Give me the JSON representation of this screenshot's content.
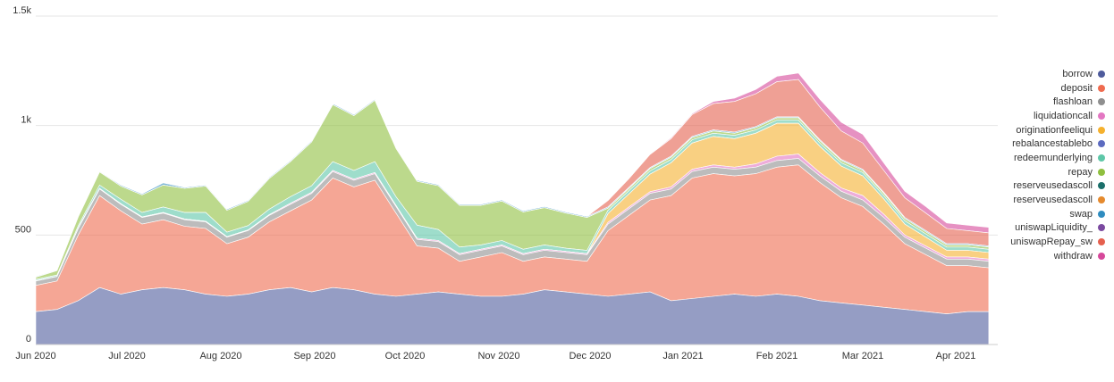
{
  "chart_data": {
    "type": "area",
    "stacked": true,
    "grid": true,
    "legend_position": "right",
    "x_ticks": [
      "Jun 2020",
      "Jul 2020",
      "Aug 2020",
      "Sep 2020",
      "Oct 2020",
      "Nov 2020",
      "Dec 2020",
      "Jan 2021",
      "Feb 2021",
      "Mar 2021",
      "Apr 2021"
    ],
    "y_ticks": [
      "0",
      "500",
      "1k",
      "1.5k"
    ],
    "y_tick_values": [
      0,
      500,
      1000,
      1500
    ],
    "ylim": [
      0,
      1500
    ],
    "x": [
      "2020-06-01",
      "2020-06-08",
      "2020-06-15",
      "2020-06-22",
      "2020-06-29",
      "2020-07-06",
      "2020-07-13",
      "2020-07-20",
      "2020-07-27",
      "2020-08-03",
      "2020-08-10",
      "2020-08-17",
      "2020-08-24",
      "2020-08-31",
      "2020-09-07",
      "2020-09-14",
      "2020-09-21",
      "2020-09-28",
      "2020-10-05",
      "2020-10-12",
      "2020-10-19",
      "2020-10-26",
      "2020-11-02",
      "2020-11-09",
      "2020-11-16",
      "2020-11-23",
      "2020-11-30",
      "2020-12-07",
      "2020-12-14",
      "2020-12-21",
      "2020-12-28",
      "2021-01-04",
      "2021-01-11",
      "2021-01-18",
      "2021-01-25",
      "2021-02-01",
      "2021-02-08",
      "2021-02-15",
      "2021-02-22",
      "2021-03-01",
      "2021-03-08",
      "2021-03-15",
      "2021-03-22",
      "2021-03-29",
      "2021-04-05",
      "2021-04-12"
    ],
    "series": [
      {
        "name": "borrow",
        "color": "#4e5b9c",
        "values": [
          150,
          160,
          200,
          260,
          230,
          250,
          260,
          250,
          230,
          220,
          230,
          250,
          260,
          240,
          260,
          250,
          230,
          220,
          230,
          240,
          230,
          220,
          220,
          230,
          250,
          240,
          230,
          220,
          230,
          240,
          200,
          210,
          220,
          230,
          220,
          230,
          220,
          200,
          190,
          180,
          170,
          160,
          150,
          140,
          150,
          150
        ]
      },
      {
        "name": "deposit",
        "color": "#ef6b4f",
        "values": [
          120,
          130,
          300,
          420,
          380,
          300,
          310,
          290,
          300,
          240,
          260,
          310,
          350,
          420,
          500,
          470,
          520,
          380,
          220,
          200,
          150,
          180,
          200,
          150,
          150,
          150,
          150,
          300,
          360,
          420,
          480,
          550,
          560,
          540,
          560,
          580,
          600,
          540,
          480,
          450,
          380,
          300,
          260,
          220,
          210,
          200
        ]
      },
      {
        "name": "flashloan",
        "color": "#8f8f8f",
        "values": [
          20,
          20,
          30,
          30,
          30,
          30,
          30,
          30,
          30,
          30,
          30,
          30,
          30,
          30,
          30,
          30,
          30,
          30,
          30,
          30,
          30,
          30,
          30,
          30,
          30,
          30,
          30,
          30,
          30,
          30,
          30,
          30,
          30,
          30,
          30,
          30,
          30,
          30,
          30,
          30,
          30,
          30,
          30,
          30,
          30,
          30
        ]
      },
      {
        "name": "liquidationcall",
        "color": "#e377c2",
        "values": [
          2,
          2,
          3,
          3,
          3,
          3,
          3,
          3,
          3,
          3,
          3,
          3,
          5,
          5,
          5,
          5,
          5,
          5,
          5,
          5,
          5,
          5,
          5,
          5,
          5,
          5,
          5,
          8,
          8,
          8,
          10,
          10,
          10,
          10,
          15,
          20,
          20,
          15,
          15,
          20,
          15,
          10,
          10,
          10,
          10,
          10
        ]
      },
      {
        "name": "originationfeeliqui",
        "color": "#f5b12e",
        "values": [
          0,
          0,
          0,
          0,
          0,
          0,
          0,
          0,
          0,
          0,
          0,
          0,
          0,
          0,
          0,
          0,
          0,
          0,
          0,
          0,
          0,
          0,
          0,
          0,
          0,
          0,
          0,
          40,
          60,
          80,
          110,
          120,
          130,
          130,
          140,
          150,
          140,
          120,
          100,
          90,
          70,
          50,
          40,
          30,
          30,
          30
        ]
      },
      {
        "name": "rebalancestablebo",
        "color": "#5c6bc0",
        "values": [
          0,
          0,
          0,
          0,
          0,
          0,
          0,
          0,
          0,
          0,
          0,
          0,
          0,
          0,
          0,
          0,
          0,
          0,
          0,
          0,
          0,
          0,
          0,
          0,
          0,
          0,
          0,
          0,
          0,
          0,
          0,
          0,
          0,
          0,
          0,
          0,
          0,
          0,
          0,
          0,
          0,
          0,
          0,
          0,
          0,
          0
        ]
      },
      {
        "name": "redeemunderlying",
        "color": "#5ec7a8",
        "values": [
          5,
          5,
          10,
          15,
          20,
          20,
          25,
          30,
          40,
          20,
          20,
          25,
          30,
          30,
          40,
          40,
          50,
          40,
          60,
          50,
          30,
          20,
          20,
          20,
          20,
          15,
          15,
          15,
          15,
          15,
          15,
          15,
          15,
          15,
          15,
          15,
          15,
          15,
          15,
          15,
          15,
          15,
          15,
          15,
          15,
          15
        ]
      },
      {
        "name": "repay",
        "color": "#8fbf3f",
        "values": [
          10,
          20,
          40,
          60,
          60,
          80,
          100,
          110,
          120,
          100,
          110,
          140,
          160,
          200,
          260,
          250,
          280,
          220,
          200,
          200,
          190,
          180,
          180,
          170,
          170,
          160,
          150,
          10,
          10,
          10,
          10,
          10,
          10,
          10,
          10,
          10,
          10,
          10,
          10,
          10,
          10,
          10,
          10,
          10,
          10,
          10
        ]
      },
      {
        "name": "reserveusedascoll",
        "color": "#1b6f6a",
        "values": [
          0,
          0,
          0,
          0,
          0,
          0,
          0,
          0,
          0,
          0,
          0,
          0,
          0,
          0,
          0,
          0,
          0,
          0,
          0,
          0,
          0,
          0,
          0,
          0,
          0,
          0,
          0,
          0,
          0,
          0,
          0,
          0,
          0,
          0,
          0,
          0,
          0,
          0,
          0,
          0,
          0,
          0,
          0,
          0,
          0,
          0
        ]
      },
      {
        "name": "reserveusedascoll",
        "color": "#e58a2e",
        "values": [
          0,
          0,
          0,
          0,
          0,
          0,
          0,
          0,
          0,
          0,
          0,
          0,
          0,
          0,
          0,
          0,
          0,
          0,
          0,
          0,
          0,
          0,
          0,
          0,
          0,
          0,
          0,
          0,
          0,
          0,
          0,
          0,
          0,
          0,
          0,
          0,
          0,
          0,
          0,
          0,
          0,
          0,
          0,
          0,
          0,
          0
        ]
      },
      {
        "name": "swap",
        "color": "#2f8cbf",
        "values": [
          3,
          3,
          3,
          3,
          5,
          5,
          10,
          5,
          5,
          5,
          5,
          5,
          5,
          5,
          5,
          5,
          5,
          5,
          5,
          5,
          5,
          5,
          5,
          5,
          5,
          5,
          5,
          5,
          5,
          5,
          5,
          5,
          5,
          5,
          5,
          5,
          5,
          5,
          5,
          5,
          5,
          5,
          5,
          5,
          5,
          5
        ]
      },
      {
        "name": "uniswapLiquidity_",
        "color": "#7b4aa0",
        "values": [
          0,
          0,
          0,
          0,
          0,
          0,
          0,
          0,
          0,
          0,
          0,
          0,
          0,
          0,
          0,
          0,
          0,
          0,
          0,
          0,
          0,
          0,
          0,
          0,
          0,
          0,
          0,
          0,
          0,
          0,
          0,
          0,
          0,
          0,
          0,
          0,
          0,
          0,
          0,
          0,
          0,
          0,
          0,
          0,
          0,
          0
        ]
      },
      {
        "name": "uniswapRepay_sw",
        "color": "#e5604e",
        "values": [
          0,
          0,
          0,
          0,
          0,
          0,
          0,
          0,
          0,
          0,
          0,
          0,
          0,
          0,
          0,
          0,
          0,
          0,
          0,
          0,
          0,
          0,
          0,
          0,
          0,
          0,
          0,
          30,
          40,
          60,
          80,
          100,
          120,
          140,
          150,
          160,
          170,
          150,
          130,
          120,
          100,
          90,
          80,
          70,
          60,
          60
        ]
      },
      {
        "name": "withdraw",
        "color": "#d6489a",
        "values": [
          0,
          0,
          0,
          0,
          0,
          0,
          0,
          0,
          0,
          0,
          0,
          0,
          0,
          0,
          0,
          0,
          0,
          0,
          0,
          0,
          0,
          0,
          0,
          0,
          0,
          0,
          0,
          0,
          0,
          2,
          5,
          5,
          10,
          15,
          20,
          25,
          30,
          35,
          40,
          40,
          35,
          30,
          30,
          25,
          25,
          25
        ]
      }
    ]
  }
}
